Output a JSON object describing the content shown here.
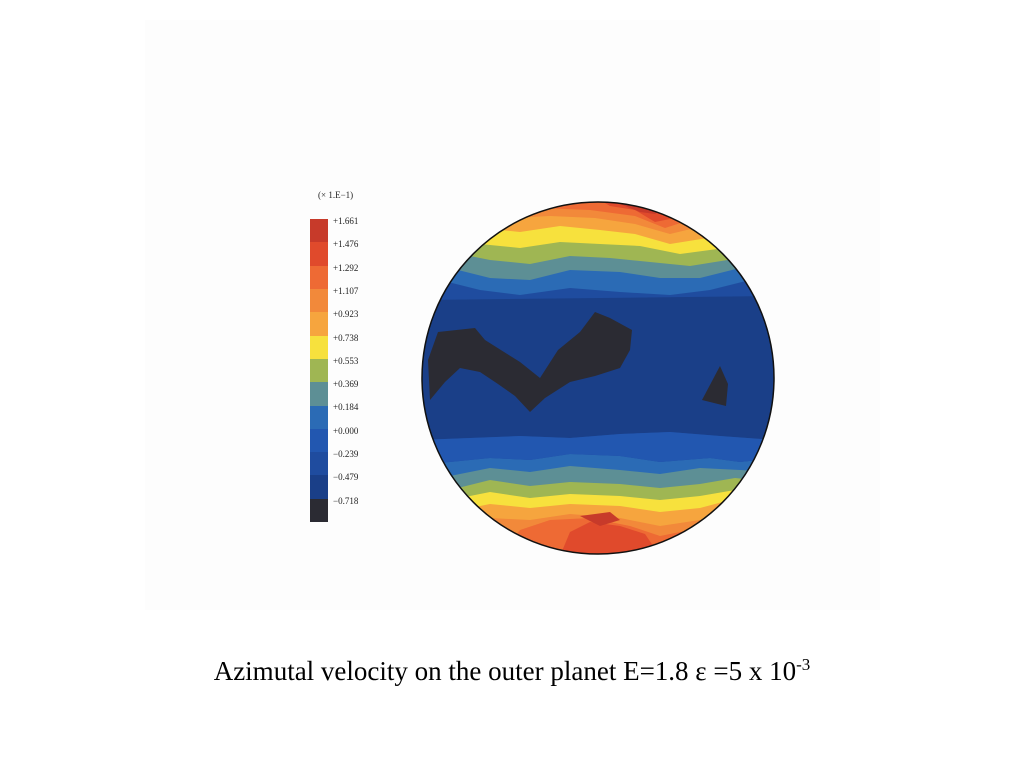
{
  "caption": {
    "main": "Azimutal velocity on the outer planet E=1.8 ε =5 x 10",
    "exponent": "-3"
  },
  "chart_data": {
    "type": "heatmap",
    "legend_unit": "(× 1.E−1)",
    "levels": [
      "+1.661",
      "+1.476",
      "+1.292",
      "+1.107",
      "+0.923",
      "+0.738",
      "+0.553",
      "+0.369",
      "+0.184",
      "+0.000",
      "−0.239",
      "−0.479",
      "−0.718"
    ],
    "level_values": [
      1.661,
      1.476,
      1.292,
      1.107,
      0.923,
      0.738,
      0.553,
      0.369,
      0.184,
      0.0,
      -0.239,
      -0.479,
      -0.718
    ],
    "colors": [
      "#c73a2a",
      "#e04a2c",
      "#ee6a34",
      "#f2893a",
      "#f6a53e",
      "#f7e13d",
      "#9fb653",
      "#5d8f95",
      "#2b6bb5",
      "#2257b0",
      "#1f4c9f",
      "#1a3f88",
      "#2b2b33"
    ],
    "range": [
      -0.718,
      1.661
    ]
  }
}
